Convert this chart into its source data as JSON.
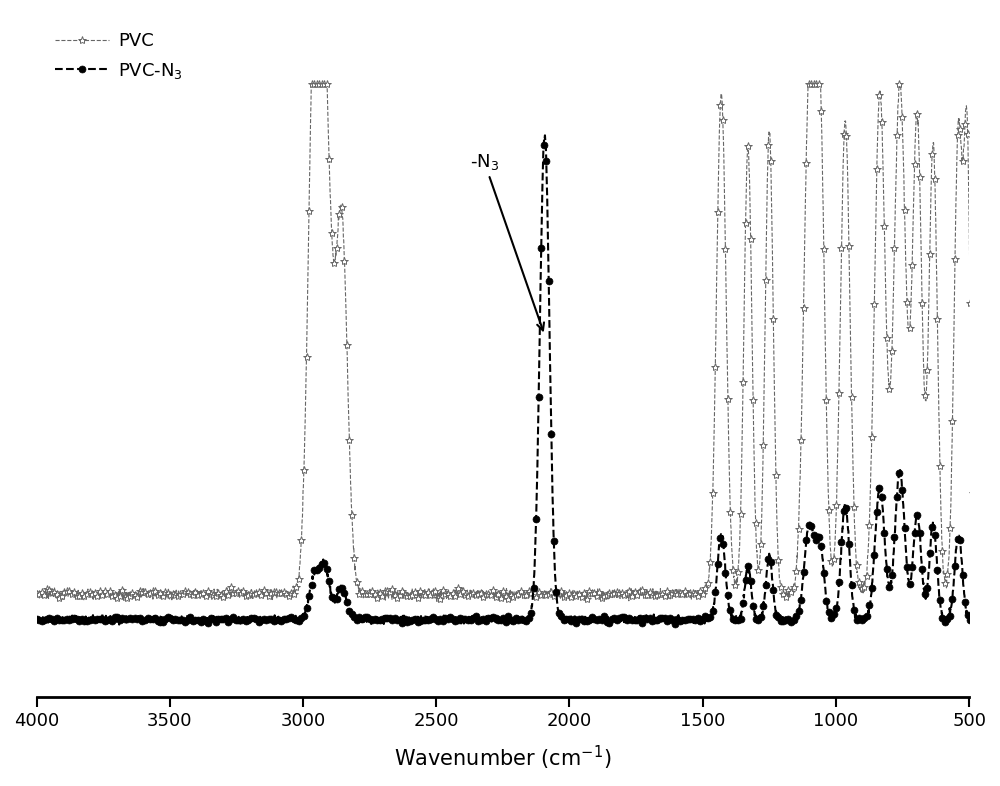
{
  "xlabel": "Wavenumber (cm$^{-1}$)",
  "legend_pvc_n3": "PVC-N$_3$",
  "legend_pvc": "PVC",
  "annotation_text": "-N$_3$",
  "xticks": [
    4000,
    3500,
    3000,
    2500,
    2000,
    1500,
    1000,
    500
  ],
  "background_color": "#ffffff",
  "line_color_pvc_n3": "#000000",
  "line_color_pvc": "#666666",
  "figsize": [
    10.0,
    7.86
  ],
  "dpi": 100,
  "xlim_min": 4000,
  "xlim_max": 500,
  "ylim_min": -0.12,
  "ylim_max": 1.05
}
